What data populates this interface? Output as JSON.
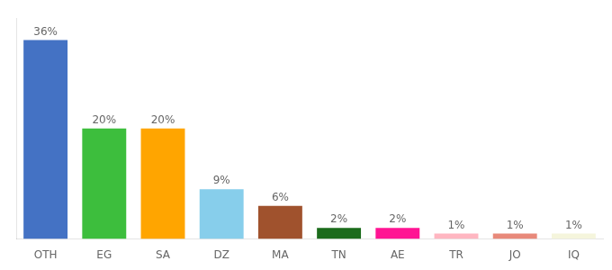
{
  "chart_data": {
    "type": "bar",
    "categories": [
      "OTH",
      "EG",
      "SA",
      "DZ",
      "MA",
      "TN",
      "AE",
      "TR",
      "JO",
      "IQ"
    ],
    "values": [
      36,
      20,
      20,
      9,
      6,
      2,
      2,
      1,
      1,
      1
    ],
    "value_labels": [
      "36%",
      "20%",
      "20%",
      "9%",
      "6%",
      "2%",
      "2%",
      "1%",
      "1%",
      "1%"
    ],
    "colors": [
      "#4472C4",
      "#3DBE3D",
      "#FFA500",
      "#87CEEB",
      "#A0522D",
      "#1B6B1B",
      "#FF1493",
      "#FFB6C1",
      "#E8897A",
      "#F5F5DC"
    ],
    "ylim": [
      0,
      40
    ],
    "grid": false,
    "data_labels": true,
    "tick_labels": "x"
  }
}
